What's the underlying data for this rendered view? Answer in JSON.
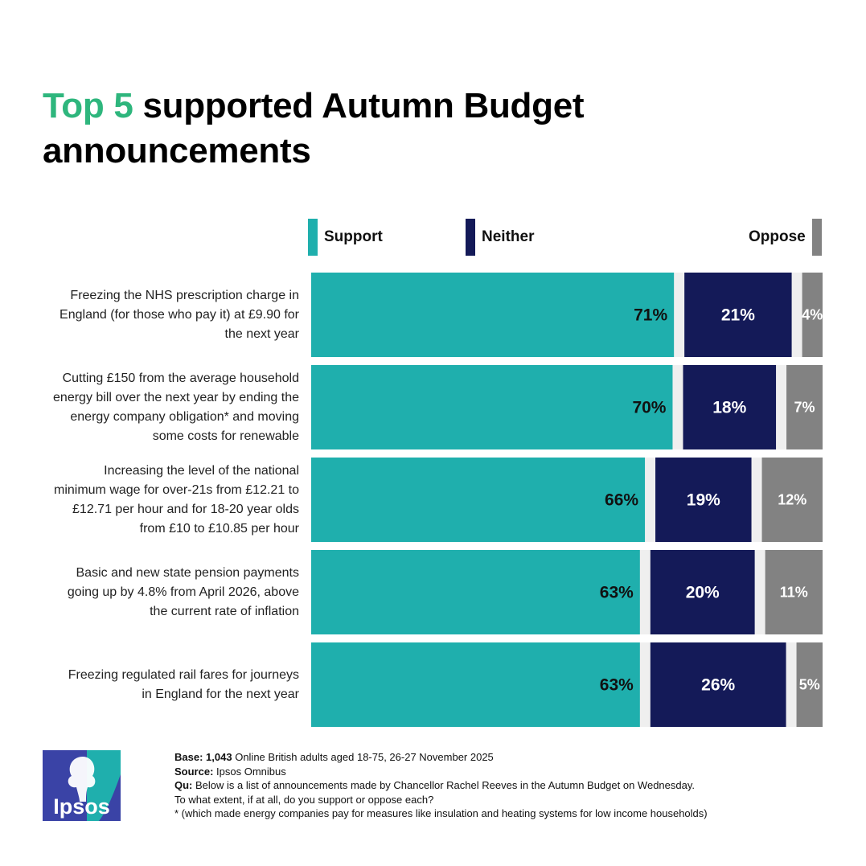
{
  "title": {
    "highlight": "Top 5",
    "rest": " supported Autumn Budget announcements"
  },
  "colors": {
    "support": "#1fafad",
    "neither": "#141a58",
    "oppose": "#828282",
    "gap": "#efefef",
    "title_highlight": "#2eb67d"
  },
  "legend": {
    "support": "Support",
    "neither": "Neither",
    "oppose": "Oppose"
  },
  "chart_data": {
    "type": "bar",
    "orientation": "horizontal-stacked-100",
    "categories": [
      "Freezing the NHS prescription charge in England (for those who pay it) at £9.90 for the next year",
      "Cutting £150 from the average household energy bill over the next year by ending the energy company obligation* and moving some costs for renewable",
      "Increasing the level of the national minimum wage for over-21s from £12.21 to £12.71 per hour and for 18-20 year olds from £10 to £10.85 per hour",
      "Basic and new state pension payments going up by 4.8% from April 2026, above the current rate of inflation",
      "Freezing regulated rail fares for journeys in England for the next year"
    ],
    "label_lines": [
      [
        "Freezing the NHS prescription charge in",
        "England (for those who pay it) at £9.90 for",
        "the next year"
      ],
      [
        "Cutting £150 from the average household",
        "energy bill over the next year by ending the",
        "energy company obligation* and moving",
        "some costs for renewable"
      ],
      [
        "Increasing the level of the national",
        "minimum wage for over-21s from £12.21 to",
        "£12.71 per hour and for 18-20 year olds",
        "from £10 to £10.85 per hour"
      ],
      [
        "Basic and new state pension payments",
        "going up by 4.8% from April 2026, above",
        "the current rate of inflation"
      ],
      [
        "Freezing regulated rail fares for journeys",
        "in England for the next year"
      ]
    ],
    "series": [
      {
        "name": "Support",
        "values": [
          71,
          70,
          66,
          63,
          63
        ]
      },
      {
        "name": "Neither",
        "values": [
          21,
          18,
          19,
          20,
          26
        ]
      },
      {
        "name": "Oppose",
        "values": [
          4,
          7,
          12,
          11,
          5
        ]
      }
    ],
    "value_labels": [
      [
        "71%",
        "70%",
        "66%",
        "63%",
        "63%"
      ],
      [
        "21%",
        "18%",
        "19%",
        "20%",
        "26%"
      ],
      [
        "4%",
        "7%",
        "12%",
        "11%",
        "5%"
      ]
    ],
    "xlim": [
      0,
      100
    ],
    "legend_position": "top"
  },
  "footer": {
    "base_label": "Base:",
    "base_value": "1,043",
    "base_text": " Online British adults aged 18-75, 26-27 November 2025",
    "source_label": "Source:",
    "source_text": " Ipsos Omnibus",
    "qu_label": "Qu:",
    "qu_text": " Below is a list of announcements made by Chancellor Rachel Reeves in the Autumn Budget on Wednesday.",
    "qu_text2": "To what extent, if at all, do you support or oppose each?",
    "note": "* (which made energy companies pay for measures like insulation and heating systems for low income households)"
  },
  "logo": {
    "text": "Ipsos"
  }
}
